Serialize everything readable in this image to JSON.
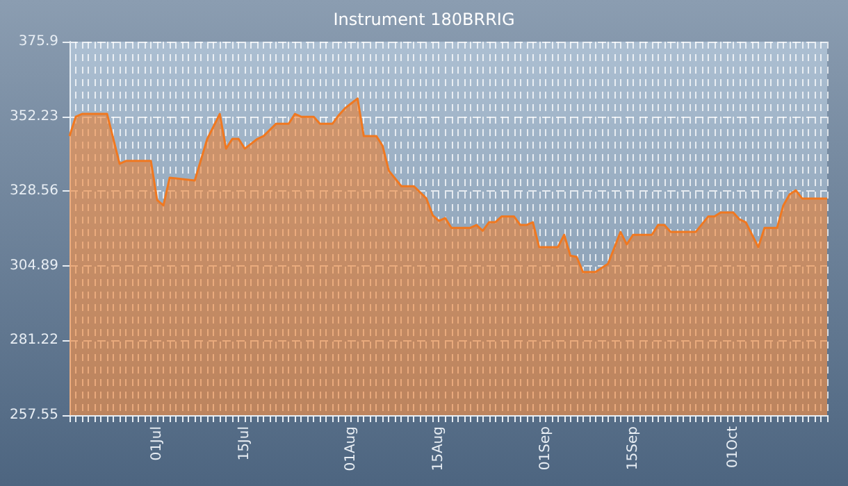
{
  "chart_data": {
    "type": "area",
    "title": "Instrument 180BRRIG",
    "x": [
      "--06-17",
      "--06-18",
      "--06-19",
      "--06-23",
      "--06-25",
      "--06-26",
      "--06-30",
      "--07-01",
      "--07-02",
      "--07-03",
      "--07-07",
      "--07-09",
      "--07-11",
      "--07-12",
      "--07-13",
      "--07-14",
      "--07-15",
      "--07-17",
      "--07-18",
      "--07-20",
      "--07-22",
      "--07-23",
      "--07-24",
      "--07-26",
      "--07-27",
      "--07-29",
      "--07-30",
      "--07-31",
      "--08-02",
      "--08-03",
      "--08-05",
      "--08-06",
      "--08-07",
      "--08-09",
      "--08-11",
      "--08-13",
      "--08-14",
      "--08-15",
      "--08-16",
      "--08-17",
      "--08-20",
      "--08-21",
      "--08-22",
      "--08-23",
      "--08-24",
      "--08-25",
      "--08-27",
      "--08-28",
      "--08-29",
      "--08-30",
      "--08-31",
      "--09-03",
      "--09-04",
      "--09-05",
      "--09-06",
      "--09-07",
      "--09-09",
      "--09-11",
      "--09-13",
      "--09-14",
      "--09-15",
      "--09-18",
      "--09-19",
      "--09-20",
      "--09-21",
      "--09-25",
      "--09-27",
      "--09-28",
      "--09-29",
      "--10-01",
      "--10-02",
      "--10-03",
      "--10-05",
      "--10-06",
      "--10-08",
      "--10-09",
      "--10-10",
      "--10-11",
      "--10-12",
      "--10-16"
    ],
    "series": [
      {
        "color": "#f07820",
        "values": [
          346.0,
          352.1,
          353.0,
          353.0,
          337.2,
          338.1,
          338.1,
          325.7,
          324.0,
          332.8,
          331.9,
          345.1,
          353.0,
          342.0,
          345.1,
          345.1,
          342.0,
          345.1,
          346.0,
          349.9,
          349.9,
          353.0,
          352.1,
          352.1,
          349.9,
          349.9,
          352.6,
          354.8,
          357.9,
          346.0,
          346.0,
          342.9,
          335.0,
          330.1,
          330.1,
          326.2,
          320.9,
          319.1,
          320.0,
          316.9,
          316.9,
          317.8,
          316.0,
          318.7,
          318.7,
          320.5,
          320.5,
          317.8,
          317.8,
          318.7,
          310.8,
          310.8,
          314.7,
          308.1,
          307.7,
          302.9,
          302.9,
          305.5,
          315.6,
          311.7,
          314.7,
          314.7,
          317.8,
          317.8,
          315.6,
          315.6,
          320.5,
          320.5,
          321.8,
          321.8,
          319.6,
          318.7,
          310.8,
          316.9,
          316.9,
          324.0,
          327.5,
          328.8,
          326.2,
          326.2
        ]
      }
    ],
    "xlim": [
      "--06-17",
      "--10-16"
    ],
    "xticks": [
      {
        "value": "--07-01",
        "label": "01Jul"
      },
      {
        "value": "--07-15",
        "label": "15Jul"
      },
      {
        "value": "--08-01",
        "label": "01Aug"
      },
      {
        "value": "--08-15",
        "label": "15Aug"
      },
      {
        "value": "--09-01",
        "label": "01Sep"
      },
      {
        "value": "--09-15",
        "label": "15Sep"
      },
      {
        "value": "--10-01",
        "label": "01Oct"
      }
    ],
    "ylim": [
      257.55,
      375.9
    ],
    "yticks": [
      257.55,
      281.22,
      304.89,
      328.56,
      352.23,
      375.9
    ],
    "grid": true,
    "marker": "none",
    "line_style": "solid"
  }
}
